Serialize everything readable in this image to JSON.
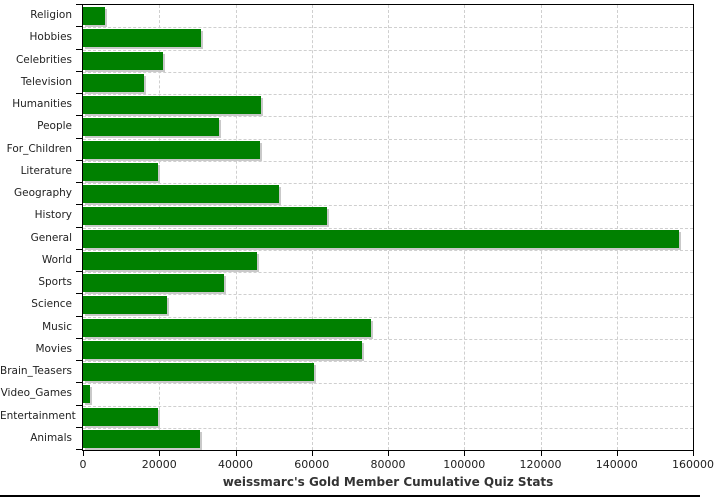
{
  "title": "weissmarc's Gold Member Cumulative Quiz Stats",
  "colors": {
    "bar": "#008000",
    "bar_shadow": "#c9c9c9",
    "gridline": "#cfcfcf",
    "axis": "#000000",
    "label_text": "#222222"
  },
  "chart_data": {
    "type": "bar",
    "orientation": "horizontal",
    "title": "weissmarc's Gold Member Cumulative Quiz Stats",
    "xlabel": "",
    "ylabel": "",
    "grid": true,
    "legend": false,
    "xlim": [
      0,
      160000
    ],
    "x_ticks": [
      0,
      20000,
      40000,
      60000,
      80000,
      100000,
      120000,
      140000,
      160000
    ],
    "x_tick_labels": [
      "0",
      "20000",
      "40000",
      "60000",
      "80000",
      "100000",
      "120000",
      "140000",
      "160000"
    ],
    "categories": [
      "Religion",
      "Hobbies",
      "Celebrities",
      "Television",
      "Humanities",
      "People",
      "For_Children",
      "Literature",
      "Geography",
      "History",
      "General",
      "World",
      "Sports",
      "Science",
      "Music",
      "Movies",
      "Brain_Teasers",
      "Video_Games",
      "Entertainment",
      "Animals"
    ],
    "values": [
      5900,
      30900,
      21000,
      16000,
      46600,
      35600,
      46400,
      19800,
      51500,
      64100,
      156200,
      45600,
      36900,
      22000,
      75600,
      73300,
      60700,
      1800,
      19700,
      30700
    ]
  }
}
